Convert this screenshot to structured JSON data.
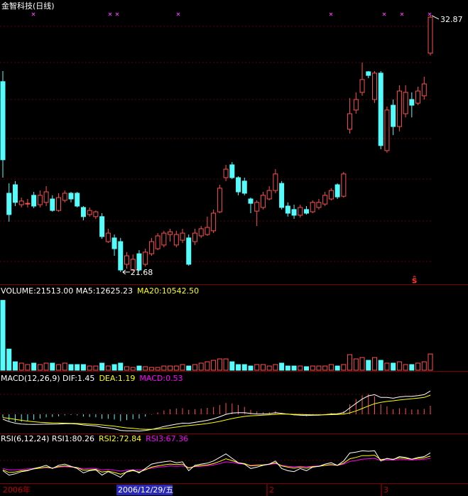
{
  "chart_data": {
    "type": "candlestick",
    "title": "金智科技(日线)",
    "up_color": "#ff5050",
    "down_color": "#54fcfc",
    "ylim": [
      21.15,
      33.55
    ],
    "high_label": 32.87,
    "low_label": 21.68,
    "open": [
      29.99,
      25.12,
      25.49,
      24.62,
      24.65,
      25.03,
      24.62,
      24.72,
      24.87,
      24.37,
      24.81,
      25.12,
      25.12,
      24.5,
      24.19,
      24.1,
      24.1,
      23.01,
      23.17,
      23.01,
      22.02,
      21.77,
      22.48,
      22.02,
      22.48,
      22.7,
      22.86,
      23.32,
      22.86,
      23.07,
      23.17,
      23.01,
      23.26,
      23.32,
      23.48,
      24.31,
      25.8,
      26.36,
      25.8,
      25.65,
      24.87,
      24.34,
      24.5,
      24.87,
      25.24,
      25.55,
      24.56,
      24.41,
      24.16,
      24.41,
      24.31,
      24.5,
      24.65,
      24.87,
      25.49,
      24.99,
      27.91,
      28.75,
      29.52,
      30.42,
      29.21,
      30.36,
      26.98,
      28.96,
      28.03,
      28.59,
      29.21,
      29.05,
      29.37,
      31.23
    ],
    "high": [
      30.45,
      25.55,
      25.65,
      24.93,
      24.87,
      25.18,
      25.24,
      25.43,
      25.03,
      25.12,
      25.24,
      25.18,
      25.18,
      24.56,
      24.5,
      24.37,
      24.25,
      23.57,
      23.32,
      23.17,
      22.55,
      22.45,
      22.64,
      22.7,
      23.17,
      23.38,
      23.48,
      23.57,
      23.48,
      23.57,
      23.32,
      23.57,
      23.69,
      24.1,
      24.41,
      25.49,
      26.36,
      26.48,
      25.86,
      25.8,
      24.93,
      24.81,
      25.18,
      25.43,
      26.17,
      25.65,
      24.72,
      24.62,
      24.62,
      24.56,
      24.81,
      24.87,
      25.18,
      25.34,
      25.55,
      26.05,
      29.27,
      29.52,
      30.82,
      30.45,
      30.45,
      30.45,
      28.9,
      29.21,
      29.83,
      29.83,
      29.52,
      29.77,
      30.2,
      32.87
    ],
    "low": [
      25.8,
      23.88,
      24.56,
      24.5,
      24.5,
      24.47,
      24.5,
      24.56,
      24.31,
      24.31,
      24.72,
      24.72,
      24.5,
      23.94,
      24.1,
      24.0,
      23.13,
      22.95,
      22.39,
      21.68,
      21.83,
      21.71,
      21.71,
      21.93,
      22.39,
      22.64,
      22.76,
      23.01,
      22.76,
      22.95,
      21.96,
      22.86,
      23.17,
      23.26,
      23.38,
      24.25,
      25.65,
      25.74,
      25.03,
      25.03,
      24.25,
      23.69,
      24.41,
      24.81,
      25.12,
      24.41,
      24.1,
      24.0,
      24.06,
      24.19,
      24.25,
      24.41,
      24.56,
      24.81,
      24.87,
      24.93,
      27.72,
      28.59,
      29.37,
      30.14,
      29.06,
      27.04,
      26.89,
      27.66,
      27.82,
      28.43,
      28.43,
      28.96,
      29.21,
      31.13
    ],
    "close": [
      26.58,
      24.19,
      24.72,
      24.78,
      24.68,
      24.56,
      25.03,
      25.18,
      24.37,
      24.93,
      25.12,
      24.87,
      24.56,
      24.1,
      24.37,
      24.31,
      23.23,
      23.38,
      22.7,
      21.77,
      22.39,
      22.24,
      21.77,
      22.55,
      23.01,
      23.26,
      23.38,
      23.44,
      23.32,
      23.38,
      22.02,
      23.38,
      23.57,
      23.63,
      24.25,
      25.34,
      26.17,
      25.8,
      25.18,
      25.12,
      24.68,
      24.72,
      25.03,
      25.24,
      25.96,
      24.5,
      24.25,
      24.16,
      24.5,
      24.25,
      24.72,
      24.72,
      25.03,
      25.24,
      24.96,
      25.96,
      28.59,
      29.21,
      30.08,
      30.26,
      30.36,
      27.2,
      28.75,
      28.03,
      29.58,
      29.52,
      28.96,
      29.58,
      29.89,
      32.8
    ],
    "volume": {
      "legend": [
        {
          "text": "VOLUME:21513.00 MA5:12625.23",
          "color": "#ffffff"
        },
        {
          "text": "MA20:10542.50",
          "color": "#ffff00"
        }
      ],
      "ylim": [
        0,
        95000
      ],
      "values": [
        92500,
        28000,
        11200,
        9400,
        7500,
        9400,
        7500,
        9400,
        9400,
        7500,
        9400,
        7500,
        7500,
        7500,
        5600,
        5600,
        9400,
        5600,
        7500,
        9400,
        4700,
        3700,
        5600,
        4700,
        3700,
        3700,
        5600,
        5600,
        5600,
        7500,
        5600,
        7500,
        9400,
        11200,
        13100,
        15000,
        15000,
        11200,
        7500,
        7500,
        5600,
        7500,
        7500,
        5600,
        7500,
        9400,
        5600,
        5600,
        5600,
        4700,
        5600,
        5600,
        5600,
        7500,
        5600,
        7500,
        20600,
        15000,
        16800,
        13100,
        16800,
        13100,
        9400,
        9400,
        11200,
        7500,
        7500,
        9400,
        11200,
        21513
      ]
    },
    "macd": {
      "legend": [
        {
          "text": "MACD(12,26,9) DIF:1.45",
          "color": "#ffffff"
        },
        {
          "text": "DEA:1.19",
          "color": "#ffff00"
        },
        {
          "text": "MACD:0.53",
          "color": "#ff00ff"
        }
      ],
      "ylim": [
        -1.1,
        1.9
      ],
      "dif": [
        -0.3,
        -0.45,
        -0.55,
        -0.6,
        -0.62,
        -0.63,
        -0.62,
        -0.6,
        -0.61,
        -0.6,
        -0.58,
        -0.58,
        -0.6,
        -0.66,
        -0.69,
        -0.72,
        -0.8,
        -0.84,
        -0.9,
        -1.0,
        -1.02,
        -1.02,
        -1.04,
        -1.0,
        -0.94,
        -0.85,
        -0.76,
        -0.68,
        -0.61,
        -0.55,
        -0.56,
        -0.5,
        -0.44,
        -0.37,
        -0.28,
        -0.15,
        0.0,
        0.08,
        0.1,
        0.1,
        0.05,
        0.02,
        0.02,
        0.04,
        0.1,
        0.06,
        0.01,
        -0.03,
        -0.05,
        -0.07,
        -0.06,
        -0.05,
        -0.02,
        0.02,
        0.03,
        0.11,
        0.4,
        0.68,
        0.95,
        1.15,
        1.22,
        1.05,
        1.05,
        1.0,
        1.08,
        1.12,
        1.12,
        1.16,
        1.22,
        1.45
      ],
      "dea": [
        -0.2,
        -0.25,
        -0.31,
        -0.37,
        -0.42,
        -0.46,
        -0.49,
        -0.51,
        -0.53,
        -0.54,
        -0.55,
        -0.56,
        -0.57,
        -0.59,
        -0.61,
        -0.63,
        -0.66,
        -0.7,
        -0.74,
        -0.79,
        -0.84,
        -0.87,
        -0.91,
        -0.93,
        -0.93,
        -0.91,
        -0.88,
        -0.84,
        -0.79,
        -0.74,
        -0.7,
        -0.66,
        -0.62,
        -0.57,
        -0.51,
        -0.44,
        -0.35,
        -0.26,
        -0.19,
        -0.13,
        -0.09,
        -0.07,
        -0.05,
        -0.03,
        0.0,
        0.01,
        0.01,
        0.0,
        -0.01,
        -0.02,
        -0.03,
        -0.03,
        -0.03,
        -0.02,
        -0.01,
        0.01,
        0.09,
        0.21,
        0.36,
        0.52,
        0.66,
        0.74,
        0.8,
        0.84,
        0.89,
        0.93,
        0.97,
        1.01,
        1.05,
        1.19
      ],
      "hist": [
        -0.2,
        -0.4,
        -0.48,
        -0.46,
        -0.4,
        -0.34,
        -0.26,
        -0.18,
        -0.16,
        -0.12,
        -0.06,
        -0.04,
        -0.06,
        -0.14,
        -0.16,
        -0.18,
        -0.28,
        -0.28,
        -0.32,
        -0.42,
        -0.36,
        -0.3,
        -0.26,
        -0.14,
        -0.02,
        0.12,
        0.24,
        0.32,
        0.36,
        0.38,
        0.28,
        0.32,
        0.36,
        0.4,
        0.46,
        0.58,
        0.7,
        0.68,
        0.58,
        0.46,
        0.28,
        0.18,
        0.14,
        0.14,
        0.2,
        0.1,
        0.0,
        -0.06,
        -0.08,
        -0.1,
        -0.06,
        -0.04,
        0.02,
        0.08,
        0.08,
        0.2,
        0.62,
        0.94,
        1.18,
        1.26,
        1.12,
        0.62,
        0.5,
        0.32,
        0.38,
        0.38,
        0.3,
        0.3,
        0.34,
        0.53
      ]
    },
    "rsi": {
      "legend": [
        {
          "text": "RSI(6,12,24) RSI1:80.26",
          "color": "#ffffff"
        },
        {
          "text": "RSI2:72.84",
          "color": "#ffff00"
        },
        {
          "text": "RSI3:67.36",
          "color": "#ff00ff"
        }
      ],
      "ylim": [
        15,
        100
      ],
      "rsi1": [
        40,
        30,
        33,
        38,
        40,
        45,
        48,
        52,
        45,
        52,
        55,
        50,
        45,
        35,
        40,
        42,
        30,
        38,
        32,
        25,
        38,
        42,
        35,
        45,
        55,
        58,
        60,
        62,
        58,
        60,
        40,
        52,
        55,
        57,
        62,
        70,
        78,
        68,
        58,
        55,
        45,
        48,
        52,
        55,
        62,
        45,
        40,
        38,
        45,
        40,
        48,
        50,
        55,
        58,
        52,
        62,
        80,
        82,
        85,
        84,
        85,
        62,
        68,
        65,
        72,
        70,
        66,
        70,
        72,
        80.26
      ],
      "rsi2": [
        42,
        36,
        37,
        40,
        41,
        44,
        46,
        48,
        46,
        49,
        51,
        49,
        47,
        41,
        42,
        43,
        37,
        39,
        36,
        32,
        37,
        40,
        37,
        42,
        48,
        51,
        53,
        55,
        54,
        55,
        46,
        50,
        52,
        53,
        56,
        61,
        67,
        63,
        58,
        56,
        51,
        52,
        53,
        55,
        58,
        51,
        48,
        46,
        48,
        46,
        49,
        50,
        52,
        54,
        52,
        57,
        67,
        70,
        74,
        74,
        75,
        65,
        67,
        66,
        69,
        68,
        66,
        68,
        69,
        72.84
      ],
      "rsi3": [
        45,
        42,
        42,
        43,
        44,
        45,
        46,
        47,
        46,
        48,
        49,
        48,
        47,
        44,
        45,
        45,
        42,
        43,
        41,
        39,
        41,
        42,
        41,
        43,
        46,
        48,
        49,
        51,
        50,
        51,
        47,
        49,
        50,
        51,
        53,
        56,
        60,
        59,
        56,
        55,
        52,
        53,
        53,
        54,
        56,
        52,
        50,
        49,
        50,
        49,
        50,
        51,
        52,
        53,
        52,
        55,
        61,
        63,
        66,
        67,
        68,
        63,
        64,
        64,
        65,
        65,
        64,
        65,
        66,
        67.36
      ]
    },
    "x_labels": [
      "2006年",
      "2006/12/29/五",
      "2",
      "3"
    ]
  }
}
